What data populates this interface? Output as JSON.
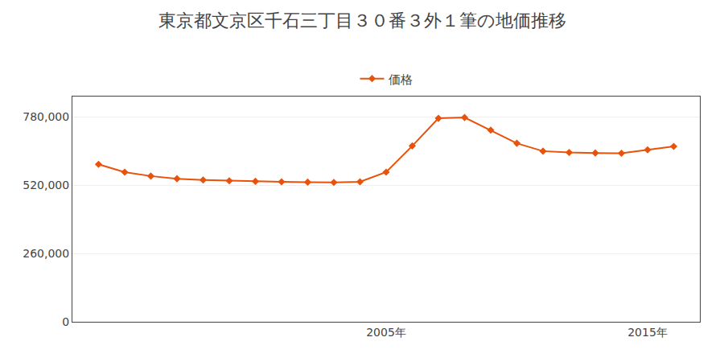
{
  "chart_data": {
    "type": "line",
    "title": "東京都文京区千石三丁目３０番３外１筆の地価推移",
    "x": [
      1994,
      1995,
      1996,
      1997,
      1998,
      1999,
      2000,
      2001,
      2002,
      2003,
      2004,
      2005,
      2006,
      2007,
      2008,
      2009,
      2010,
      2011,
      2012,
      2013,
      2014,
      2015,
      2016
    ],
    "series": [
      {
        "name": "価格",
        "color": "#e8520a",
        "marker": "diamond",
        "values": [
          600000,
          570000,
          555000,
          545000,
          540000,
          537000,
          535000,
          533000,
          532000,
          531000,
          533000,
          570000,
          670000,
          775000,
          778000,
          730000,
          680000,
          650000,
          645000,
          643000,
          642000,
          655000,
          668000
        ]
      }
    ],
    "xlim": [
      1993,
      2017
    ],
    "xticks": [
      {
        "value": 2005,
        "label": "2005年"
      },
      {
        "value": 2015,
        "label": "2015年"
      }
    ],
    "ylim": [
      0,
      858000
    ],
    "yticks": [
      0,
      {
        "value": 260000,
        "label": "260,000"
      },
      {
        "value": 520000,
        "label": "520,000"
      },
      {
        "value": 780000,
        "label": "780,000"
      }
    ],
    "grid": "y",
    "legend": "top"
  }
}
